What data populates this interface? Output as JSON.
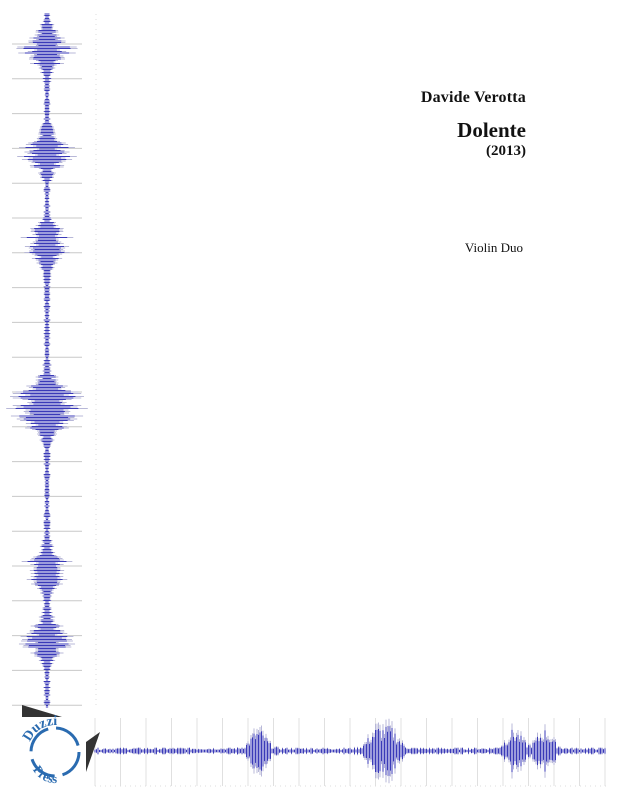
{
  "cover": {
    "composer": "Davide Verotta",
    "title": "Dolente",
    "year": "(2013)",
    "instrumentation": "Violin Duo"
  },
  "logo": {
    "text_top": "Duzzi",
    "text_bottom": "Press"
  },
  "colors": {
    "waveform": "#3a3ab8",
    "waveform_shadow": "#b8b8d8",
    "grid": "#c8c8c8",
    "logo": "#2a6bb0"
  }
}
